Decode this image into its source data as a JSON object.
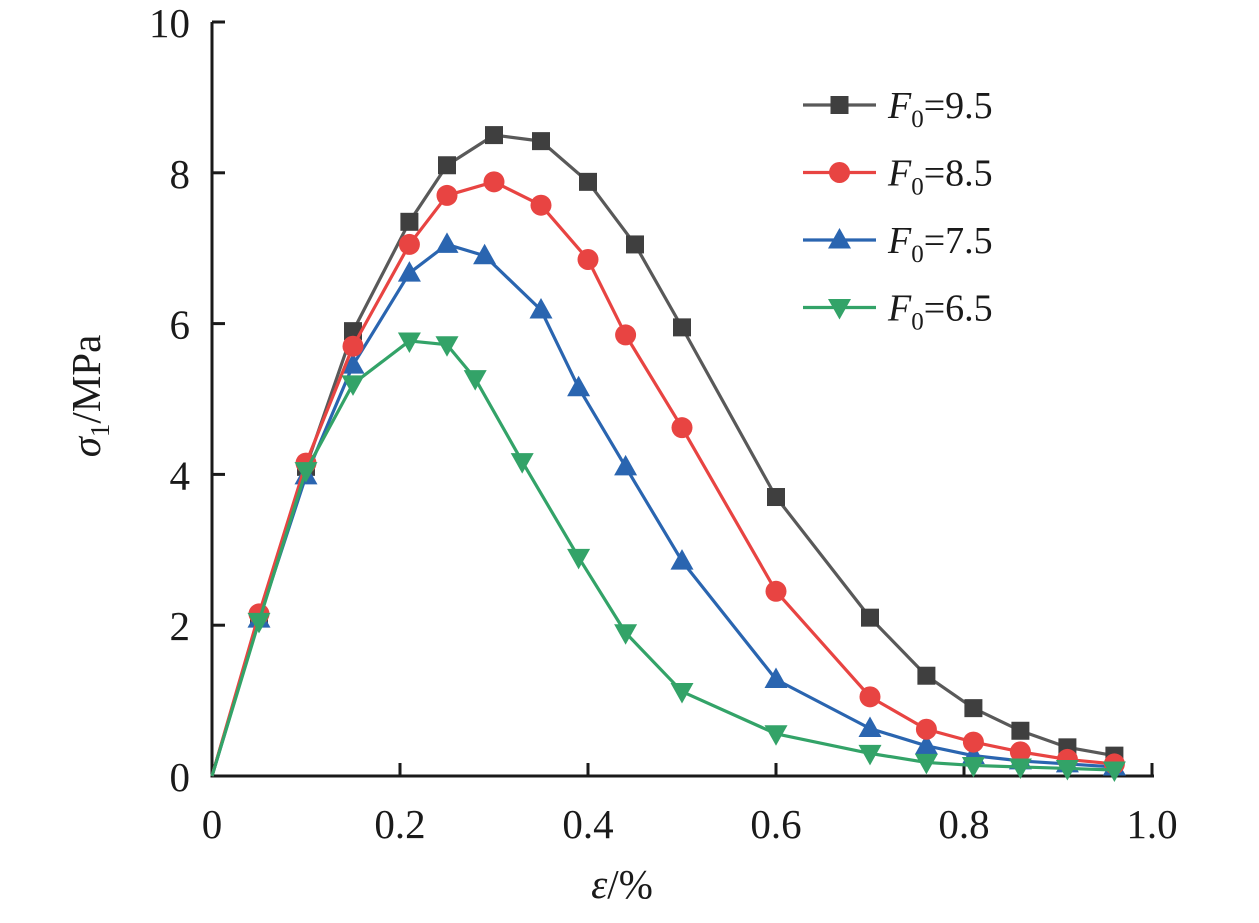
{
  "chart_data": {
    "type": "line",
    "title": "",
    "xlabel": "ε/%",
    "ylabel": "σ1/MPa",
    "xlabel_segments": [
      [
        "ε",
        "italic"
      ],
      [
        "/%",
        ""
      ]
    ],
    "ylabel_segments": [
      [
        "σ",
        "italic"
      ],
      [
        "1",
        "sub"
      ],
      [
        "/MPa",
        ""
      ]
    ],
    "xlim": [
      0,
      1.0
    ],
    "ylim": [
      0,
      10
    ],
    "x_ticks": [
      {
        "v": 0,
        "label": "0"
      },
      {
        "v": 0.2,
        "label": "0.2"
      },
      {
        "v": 0.4,
        "label": "0.4"
      },
      {
        "v": 0.6,
        "label": "0.6"
      },
      {
        "v": 0.8,
        "label": "0.8"
      },
      {
        "v": 1.0,
        "label": "1.0"
      }
    ],
    "y_ticks": [
      {
        "v": 0,
        "label": "0"
      },
      {
        "v": 2,
        "label": "2"
      },
      {
        "v": 4,
        "label": "4"
      },
      {
        "v": 6,
        "label": "6"
      },
      {
        "v": 8,
        "label": "8"
      },
      {
        "v": 10,
        "label": "10"
      }
    ],
    "grid": false,
    "legend_position": "upper-right",
    "axis_color": "#1a1a1a",
    "series": [
      {
        "name": "F0=9.5",
        "label_segments": [
          [
            "F",
            "italic"
          ],
          [
            "0",
            "sub"
          ],
          [
            "=9.5",
            ""
          ]
        ],
        "marker": "square",
        "line_color": "#595959",
        "marker_color": "#3f3f3f",
        "points": [
          [
            0,
            0
          ],
          [
            0.05,
            2.1
          ],
          [
            0.1,
            4.1
          ],
          [
            0.15,
            5.9
          ],
          [
            0.21,
            7.35
          ],
          [
            0.25,
            8.1
          ],
          [
            0.3,
            8.5
          ],
          [
            0.35,
            8.42
          ],
          [
            0.4,
            7.88
          ],
          [
            0.45,
            7.05
          ],
          [
            0.5,
            5.95
          ],
          [
            0.6,
            3.7
          ],
          [
            0.7,
            2.1
          ],
          [
            0.76,
            1.33
          ],
          [
            0.81,
            0.9
          ],
          [
            0.86,
            0.6
          ],
          [
            0.91,
            0.38
          ],
          [
            0.96,
            0.27
          ]
        ]
      },
      {
        "name": "F0=7.5",
        "label_segments": [
          [
            "F",
            "italic"
          ],
          [
            "0",
            "sub"
          ],
          [
            "=7.5",
            ""
          ]
        ],
        "marker": "triangle-up",
        "line_color": "#2a65b0",
        "marker_color": "#2a65b0",
        "points": [
          [
            0,
            0
          ],
          [
            0.05,
            2.08
          ],
          [
            0.1,
            3.98
          ],
          [
            0.15,
            5.45
          ],
          [
            0.21,
            6.67
          ],
          [
            0.25,
            7.05
          ],
          [
            0.29,
            6.9
          ],
          [
            0.35,
            6.18
          ],
          [
            0.39,
            5.15
          ],
          [
            0.44,
            4.1
          ],
          [
            0.5,
            2.85
          ],
          [
            0.6,
            1.28
          ],
          [
            0.7,
            0.63
          ],
          [
            0.76,
            0.4
          ],
          [
            0.81,
            0.27
          ],
          [
            0.86,
            0.2
          ],
          [
            0.91,
            0.16
          ],
          [
            0.96,
            0.12
          ]
        ]
      },
      {
        "name": "F0=8.5",
        "label_segments": [
          [
            "F",
            "italic"
          ],
          [
            "0",
            "sub"
          ],
          [
            "=8.5",
            ""
          ]
        ],
        "marker": "circle",
        "line_color": "#e84442",
        "marker_color": "#e84442",
        "points": [
          [
            0,
            0
          ],
          [
            0.05,
            2.15
          ],
          [
            0.1,
            4.15
          ],
          [
            0.15,
            5.7
          ],
          [
            0.21,
            7.05
          ],
          [
            0.25,
            7.7
          ],
          [
            0.3,
            7.88
          ],
          [
            0.35,
            7.57
          ],
          [
            0.4,
            6.85
          ],
          [
            0.44,
            5.85
          ],
          [
            0.5,
            4.62
          ],
          [
            0.6,
            2.45
          ],
          [
            0.7,
            1.05
          ],
          [
            0.76,
            0.62
          ],
          [
            0.81,
            0.45
          ],
          [
            0.86,
            0.32
          ],
          [
            0.91,
            0.22
          ],
          [
            0.96,
            0.16
          ]
        ]
      },
      {
        "name": "F0=6.5",
        "label_segments": [
          [
            "F",
            "italic"
          ],
          [
            "0",
            "sub"
          ],
          [
            "=6.5",
            ""
          ]
        ],
        "marker": "triangle-down",
        "line_color": "#33a368",
        "marker_color": "#33a368",
        "points": [
          [
            0,
            0
          ],
          [
            0.05,
            2.05
          ],
          [
            0.1,
            4.05
          ],
          [
            0.15,
            5.2
          ],
          [
            0.21,
            5.77
          ],
          [
            0.25,
            5.72
          ],
          [
            0.28,
            5.27
          ],
          [
            0.33,
            4.17
          ],
          [
            0.39,
            2.9
          ],
          [
            0.44,
            1.9
          ],
          [
            0.5,
            1.12
          ],
          [
            0.6,
            0.56
          ],
          [
            0.7,
            0.3
          ],
          [
            0.76,
            0.18
          ],
          [
            0.81,
            0.14
          ],
          [
            0.86,
            0.12
          ],
          [
            0.91,
            0.1
          ],
          [
            0.96,
            0.08
          ]
        ]
      }
    ],
    "legend_order": [
      "F0=9.5",
      "F0=8.5",
      "F0=7.5",
      "F0=6.5"
    ]
  }
}
